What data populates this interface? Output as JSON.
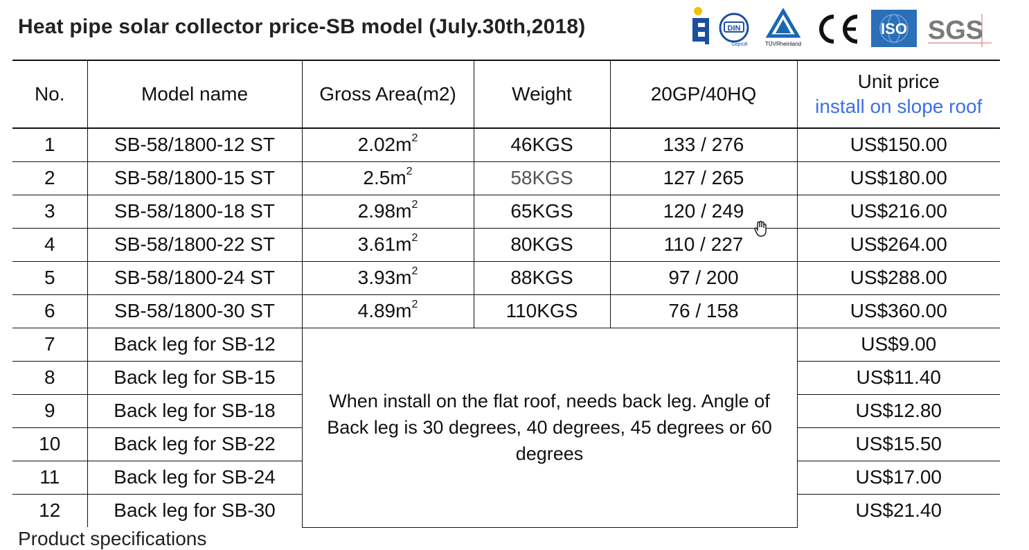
{
  "title": "Heat pipe solar collector price-SB model (July.30th,2018)",
  "logos": {
    "din_label": "DIN",
    "din_sub": "Geprüft",
    "tuv_label": "TÜVRheinland",
    "ce_label": "CE",
    "iso_label": "ISO",
    "sgs_label": "SGS"
  },
  "table": {
    "headers": {
      "no": "No.",
      "model": "Model name",
      "area": "Gross Area(m2)",
      "weight": "Weight",
      "container": "20GP/40HQ",
      "price_line1": "Unit price",
      "price_line2": "install on slope roof"
    },
    "rows": [
      {
        "no": "1",
        "model": "SB-58/1800-12 ST",
        "area": "2.02m",
        "weight": "46KGS",
        "container": "133 / 276",
        "price": "US$150.00"
      },
      {
        "no": "2",
        "model": "SB-58/1800-15 ST",
        "area": "2.5m",
        "weight": "58KGS",
        "container": "127 / 265",
        "price": "US$180.00"
      },
      {
        "no": "3",
        "model": "SB-58/1800-18 ST",
        "area": "2.98m",
        "weight": "65KGS",
        "container": "120 / 249",
        "price": "US$216.00"
      },
      {
        "no": "4",
        "model": "SB-58/1800-22 ST",
        "area": "3.61m",
        "weight": "80KGS",
        "container": "110 / 227",
        "price": "US$264.00"
      },
      {
        "no": "5",
        "model": "SB-58/1800-24 ST",
        "area": "3.93m",
        "weight": "88KGS",
        "container": "97 / 200",
        "price": "US$288.00"
      },
      {
        "no": "6",
        "model": "SB-58/1800-30 ST",
        "area": "4.89m",
        "weight": "110KGS",
        "container": "76 / 158",
        "price": "US$360.00"
      }
    ],
    "area_sup": "2",
    "leg_rows": [
      {
        "no": "7",
        "model": "Back leg for SB-12",
        "price": "US$9.00"
      },
      {
        "no": "8",
        "model": "Back leg for SB-15",
        "price": "US$11.40"
      },
      {
        "no": "9",
        "model": "Back leg for SB-18",
        "price": "US$12.80"
      },
      {
        "no": "10",
        "model": "Back leg for SB-22",
        "price": "US$15.50"
      },
      {
        "no": "11",
        "model": "Back leg for SB-24",
        "price": "US$17.00"
      },
      {
        "no": "12",
        "model": "Back leg for SB-30",
        "price": "US$21.40"
      }
    ],
    "leg_note": "When install on the flat roof, needs back leg. Angle of Back leg is 30 degrees, 40 degrees, 45 degrees or 60 degrees"
  },
  "footer": "Product specifications",
  "colors": {
    "accent_blue": "#3b6fe8",
    "iso_blue": "#2a6fb8",
    "sgs_grey": "#7a7a7a",
    "din_blue": "#1b4fa0",
    "tuv_blue": "#1a67b3"
  }
}
